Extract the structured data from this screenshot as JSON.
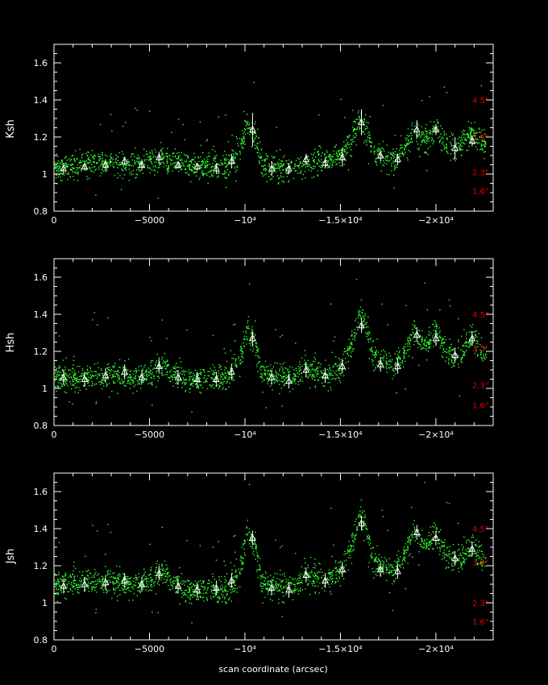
{
  "colors": {
    "background": "#000000",
    "axis": "#ffffff",
    "scatter": "#33ff33",
    "binned": "#ffffff",
    "seeing_labels": "#e00000"
  },
  "chart_data": [
    {
      "type": "scatter",
      "ylabel": "Ksh",
      "xlabel": "",
      "xlim": [
        0,
        -23000
      ],
      "ylim": [
        0.8,
        1.7
      ],
      "x_ticks": [
        "0",
        "−5000",
        "−10⁴",
        "−1.5×10⁴",
        "−2×10⁴"
      ],
      "y_ticks": [
        "0.8",
        "1",
        "1.2",
        "1.4",
        "1.6"
      ],
      "seeing_labels": [
        {
          "text": "4.5\"",
          "y": 1.4
        },
        {
          "text": "3.5\"",
          "y": 1.2
        },
        {
          "text": "2.3\"",
          "y": 1.01
        },
        {
          "text": "1.6\"",
          "y": 0.91
        }
      ],
      "baseline": [
        [
          0,
          1.04
        ],
        [
          1500,
          1.05
        ],
        [
          3000,
          1.06
        ],
        [
          4500,
          1.06
        ],
        [
          5500,
          1.08
        ],
        [
          7000,
          1.04
        ],
        [
          9000,
          1.05
        ],
        [
          9700,
          1.12
        ],
        [
          10100,
          1.28
        ],
        [
          10500,
          1.2
        ],
        [
          10900,
          1.05
        ],
        [
          12500,
          1.03
        ],
        [
          14000,
          1.07
        ],
        [
          15000,
          1.1
        ],
        [
          15600,
          1.2
        ],
        [
          16000,
          1.3
        ],
        [
          16300,
          1.26
        ],
        [
          16700,
          1.12
        ],
        [
          17800,
          1.08
        ],
        [
          18400,
          1.15
        ],
        [
          18900,
          1.24
        ],
        [
          19400,
          1.18
        ],
        [
          20000,
          1.25
        ],
        [
          20500,
          1.16
        ],
        [
          21000,
          1.12
        ],
        [
          21400,
          1.18
        ],
        [
          21900,
          1.22
        ],
        [
          22400,
          1.16
        ]
      ],
      "series": [
        {
          "name": "",
          "x": [
            -500,
            -1600,
            -2700,
            -3700,
            -4600,
            -5500,
            -6500,
            -7500,
            -8500,
            -9300,
            -10400,
            -11400,
            -12300,
            -13200,
            -14200,
            -15100,
            -16100,
            -17100,
            -18000,
            -19000,
            -20000,
            -21000,
            -21900
          ],
          "y": [
            1.03,
            1.04,
            1.05,
            1.07,
            1.05,
            1.09,
            1.05,
            1.04,
            1.03,
            1.07,
            1.24,
            1.03,
            1.03,
            1.08,
            1.06,
            1.09,
            1.28,
            1.1,
            1.08,
            1.24,
            1.24,
            1.14,
            1.18
          ],
          "err": [
            0.03,
            0.02,
            0.03,
            0.02,
            0.03,
            0.03,
            0.02,
            0.02,
            0.03,
            0.04,
            0.09,
            0.04,
            0.03,
            0.03,
            0.03,
            0.05,
            0.07,
            0.03,
            0.03,
            0.05,
            0.03,
            0.06,
            0.03
          ]
        }
      ]
    },
    {
      "type": "scatter",
      "ylabel": "Hsh",
      "xlabel": "",
      "xlim": [
        0,
        -23000
      ],
      "ylim": [
        0.8,
        1.7
      ],
      "x_ticks": [
        "0",
        "−5000",
        "−10⁴",
        "−1.5×10⁴",
        "−2×10⁴"
      ],
      "y_ticks": [
        "0.8",
        "1",
        "1.2",
        "1.4",
        "1.6"
      ],
      "seeing_labels": [
        {
          "text": "4.5\"",
          "y": 1.4
        },
        {
          "text": "3.5\"",
          "y": 1.22
        },
        {
          "text": "2.3\"",
          "y": 1.02
        },
        {
          "text": "1.6\"",
          "y": 0.91
        }
      ],
      "baseline": [
        [
          0,
          1.06
        ],
        [
          1500,
          1.06
        ],
        [
          3000,
          1.08
        ],
        [
          4500,
          1.06
        ],
        [
          5500,
          1.12
        ],
        [
          7000,
          1.05
        ],
        [
          9000,
          1.06
        ],
        [
          9700,
          1.14
        ],
        [
          10100,
          1.32
        ],
        [
          10500,
          1.24
        ],
        [
          10900,
          1.08
        ],
        [
          12500,
          1.05
        ],
        [
          13300,
          1.12
        ],
        [
          14000,
          1.07
        ],
        [
          15000,
          1.12
        ],
        [
          15600,
          1.25
        ],
        [
          16000,
          1.4
        ],
        [
          16300,
          1.35
        ],
        [
          16700,
          1.18
        ],
        [
          17800,
          1.12
        ],
        [
          18400,
          1.2
        ],
        [
          18900,
          1.32
        ],
        [
          19400,
          1.22
        ],
        [
          20000,
          1.32
        ],
        [
          20500,
          1.2
        ],
        [
          21000,
          1.16
        ],
        [
          21400,
          1.22
        ],
        [
          21900,
          1.28
        ],
        [
          22400,
          1.2
        ]
      ],
      "series": [
        {
          "name": "",
          "x": [
            -500,
            -1600,
            -2700,
            -3700,
            -4600,
            -5500,
            -6500,
            -7500,
            -8500,
            -9300,
            -10400,
            -11400,
            -12300,
            -13200,
            -14200,
            -15100,
            -16100,
            -17100,
            -18000,
            -19000,
            -20000,
            -21000,
            -21900
          ],
          "y": [
            1.06,
            1.05,
            1.07,
            1.09,
            1.06,
            1.12,
            1.06,
            1.05,
            1.05,
            1.09,
            1.27,
            1.06,
            1.04,
            1.1,
            1.07,
            1.12,
            1.34,
            1.13,
            1.12,
            1.29,
            1.27,
            1.18,
            1.27
          ]
        }
      ]
    },
    {
      "type": "scatter",
      "ylabel": "Jsh",
      "xlabel": "scan coordinate (arcsec)",
      "xlim": [
        0,
        -23000
      ],
      "ylim": [
        0.8,
        1.7
      ],
      "x_ticks": [
        "0",
        "−5000",
        "−10⁴",
        "−1.5×10⁴",
        "−2×10⁴"
      ],
      "y_ticks": [
        "0.8",
        "1",
        "1.2",
        "1.4",
        "1.6"
      ],
      "seeing_labels": [
        {
          "text": "4.5\"",
          "y": 1.4
        },
        {
          "text": "3.5\"",
          "y": 1.22
        },
        {
          "text": "2.3\"",
          "y": 1.0
        },
        {
          "text": "1.6\"",
          "y": 0.9
        }
      ],
      "baseline": [
        [
          0,
          1.1
        ],
        [
          1500,
          1.11
        ],
        [
          3000,
          1.12
        ],
        [
          4500,
          1.1
        ],
        [
          5500,
          1.16
        ],
        [
          7000,
          1.07
        ],
        [
          9000,
          1.07
        ],
        [
          9700,
          1.16
        ],
        [
          10100,
          1.4
        ],
        [
          10500,
          1.3
        ],
        [
          10900,
          1.1
        ],
        [
          12500,
          1.07
        ],
        [
          13300,
          1.16
        ],
        [
          14000,
          1.12
        ],
        [
          15000,
          1.18
        ],
        [
          15600,
          1.32
        ],
        [
          16000,
          1.48
        ],
        [
          16300,
          1.42
        ],
        [
          16700,
          1.22
        ],
        [
          17800,
          1.17
        ],
        [
          18400,
          1.28
        ],
        [
          18900,
          1.4
        ],
        [
          19400,
          1.3
        ],
        [
          20000,
          1.38
        ],
        [
          20500,
          1.26
        ],
        [
          21000,
          1.22
        ],
        [
          21400,
          1.26
        ],
        [
          21900,
          1.3
        ],
        [
          22400,
          1.24
        ]
      ],
      "series": [
        {
          "name": "",
          "x": [
            -500,
            -1600,
            -2700,
            -3700,
            -4600,
            -5500,
            -6500,
            -7500,
            -8500,
            -9300,
            -10400,
            -11400,
            -12300,
            -13200,
            -14200,
            -15100,
            -16100,
            -17100,
            -18000,
            -19000,
            -20000,
            -21000,
            -21900
          ],
          "y": [
            1.09,
            1.1,
            1.11,
            1.12,
            1.1,
            1.16,
            1.09,
            1.07,
            1.08,
            1.12,
            1.35,
            1.08,
            1.07,
            1.15,
            1.12,
            1.18,
            1.43,
            1.18,
            1.17,
            1.38,
            1.35,
            1.24,
            1.29
          ]
        }
      ]
    }
  ]
}
